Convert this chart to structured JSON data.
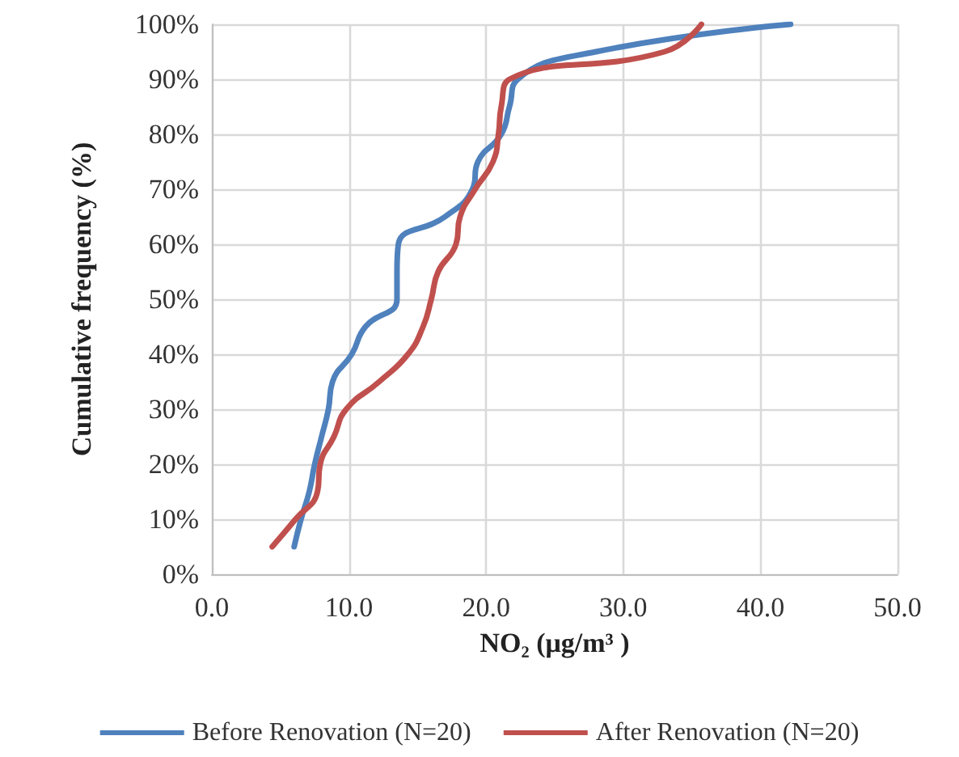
{
  "chart_data": {
    "type": "line",
    "xlabel": "NO₂ (μg/m³ )",
    "ylabel": "Cumulative frequency (%)",
    "series": [
      {
        "name": "Before Renovation (N=20)",
        "color": "#4f81bd",
        "x": [
          6.0,
          6.5,
          7.1,
          7.5,
          8.0,
          8.5,
          8.8,
          10.2,
          11.2,
          13.5,
          13.5,
          13.6,
          17.0,
          19.0,
          19.4,
          21.1,
          21.7,
          22.3,
          28.0,
          42.2
        ],
        "values": [
          5,
          10,
          15,
          20,
          25,
          30,
          35,
          40,
          45,
          50,
          55,
          60,
          65,
          70,
          75,
          80,
          85,
          90,
          95,
          100
        ]
      },
      {
        "name": "After Renovation (N=20)",
        "color": "#c0504d",
        "x": [
          4.4,
          6.1,
          7.7,
          7.9,
          8.9,
          9.8,
          12.2,
          14.3,
          15.4,
          16.0,
          16.5,
          17.8,
          18.1,
          19.2,
          20.5,
          20.9,
          21.1,
          21.7,
          33.0,
          35.7
        ],
        "values": [
          5,
          10,
          15,
          20,
          25,
          30,
          35,
          40,
          45,
          50,
          55,
          60,
          65,
          70,
          75,
          80,
          85,
          90,
          95,
          100
        ]
      }
    ],
    "xlim": [
      0,
      50
    ],
    "xticks": [
      {
        "value": 0,
        "label": "0.0"
      },
      {
        "value": 10,
        "label": "10.0"
      },
      {
        "value": 20,
        "label": "20.0"
      },
      {
        "value": 30,
        "label": "30.0"
      },
      {
        "value": 40,
        "label": "40.0"
      },
      {
        "value": 50,
        "label": "50.0"
      }
    ],
    "ylim": [
      0,
      100
    ],
    "yticks": [
      {
        "value": 0,
        "label": "0%"
      },
      {
        "value": 10,
        "label": "10%"
      },
      {
        "value": 20,
        "label": "20%"
      },
      {
        "value": 30,
        "label": "30%"
      },
      {
        "value": 40,
        "label": "40%"
      },
      {
        "value": 50,
        "label": "50%"
      },
      {
        "value": 60,
        "label": "60%"
      },
      {
        "value": 70,
        "label": "70%"
      },
      {
        "value": 80,
        "label": "80%"
      },
      {
        "value": 90,
        "label": "90%"
      },
      {
        "value": 100,
        "label": "100%"
      }
    ],
    "grid": true,
    "legend": "bottom",
    "marker": "none",
    "line_style": "solid"
  }
}
